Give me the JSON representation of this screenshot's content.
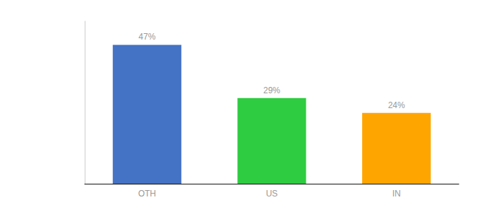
{
  "chart_data": {
    "type": "bar",
    "categories": [
      "OTH",
      "US",
      "IN"
    ],
    "values": [
      47,
      29,
      24
    ],
    "value_labels": [
      "47%",
      "29%",
      "24%"
    ],
    "data_labels": true,
    "colors": [
      "#4472C4",
      "#2ECC40",
      "#FFA500"
    ],
    "ylim": [
      0,
      55
    ],
    "tick_labels": "x",
    "grid": false
  }
}
